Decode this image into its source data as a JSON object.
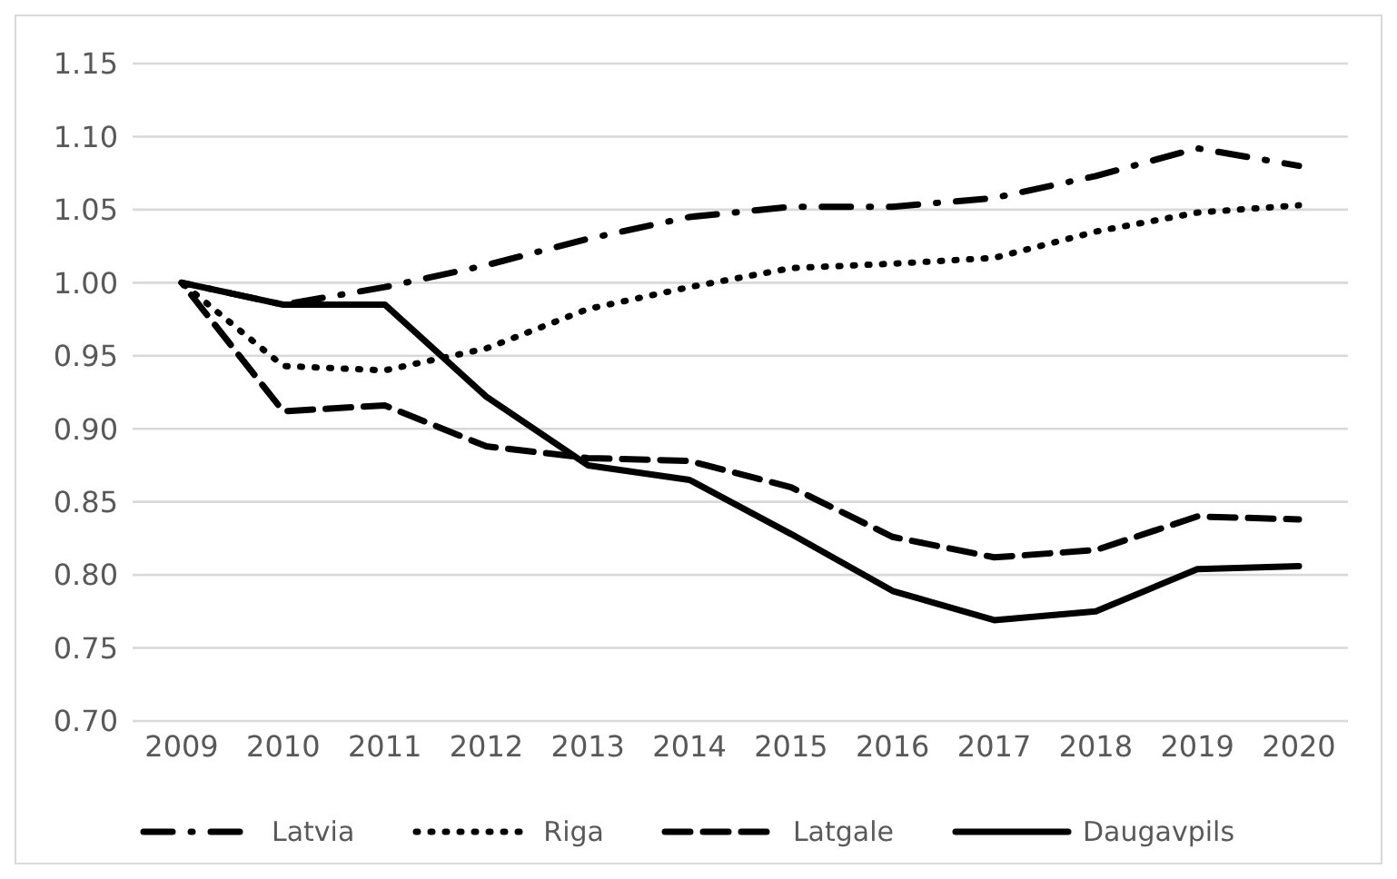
{
  "chart_data": {
    "type": "line",
    "categories": [
      "2009",
      "2010",
      "2011",
      "2012",
      "2013",
      "2014",
      "2015",
      "2016",
      "2017",
      "2018",
      "2019",
      "2020"
    ],
    "series": [
      {
        "name": "Latvia",
        "color": "#000000",
        "line_style": "dashdot",
        "values": [
          1.0,
          0.985,
          0.997,
          1.012,
          1.03,
          1.045,
          1.052,
          1.052,
          1.058,
          1.073,
          1.092,
          1.08
        ]
      },
      {
        "name": "Riga",
        "color": "#000000",
        "line_style": "dotted",
        "values": [
          1.0,
          0.943,
          0.94,
          0.955,
          0.982,
          0.997,
          1.01,
          1.013,
          1.017,
          1.035,
          1.048,
          1.053
        ]
      },
      {
        "name": "Latgale",
        "color": "#000000",
        "line_style": "dashed",
        "values": [
          1.0,
          0.912,
          0.916,
          0.888,
          0.88,
          0.878,
          0.86,
          0.826,
          0.812,
          0.817,
          0.84,
          0.838
        ]
      },
      {
        "name": "Daugavpils",
        "color": "#000000",
        "line_style": "solid",
        "values": [
          1.0,
          0.985,
          0.985,
          0.922,
          0.875,
          0.865,
          0.828,
          0.789,
          0.769,
          0.775,
          0.804,
          0.806
        ]
      }
    ],
    "ylim": [
      0.7,
      1.15
    ],
    "yticks": [
      {
        "value": 0.7,
        "label": "0.70"
      },
      {
        "value": 0.75,
        "label": "0.75"
      },
      {
        "value": 0.8,
        "label": "0.80"
      },
      {
        "value": 0.85,
        "label": "0.85"
      },
      {
        "value": 0.9,
        "label": "0.90"
      },
      {
        "value": 0.95,
        "label": "0.95"
      },
      {
        "value": 1.0,
        "label": "1.00"
      },
      {
        "value": 1.05,
        "label": "1.05"
      },
      {
        "value": 1.1,
        "label": "1.10"
      },
      {
        "value": 1.15,
        "label": "1.15"
      }
    ],
    "grid": "y",
    "legend": "bottom",
    "marker": "none"
  }
}
